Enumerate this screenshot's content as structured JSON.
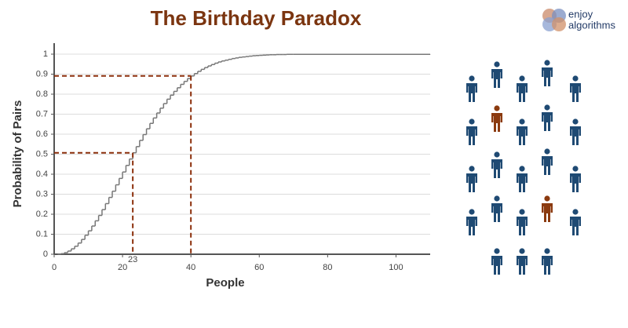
{
  "chart_data": {
    "type": "step",
    "title": "The Birthday Paradox",
    "x_label": "People",
    "y_label": "Probability of Pairs",
    "x": [
      1,
      2,
      3,
      4,
      5,
      6,
      7,
      8,
      9,
      10,
      11,
      12,
      13,
      14,
      15,
      16,
      17,
      18,
      19,
      20,
      21,
      22,
      23,
      24,
      25,
      26,
      27,
      28,
      29,
      30,
      31,
      32,
      33,
      34,
      35,
      36,
      37,
      38,
      39,
      40,
      41,
      42,
      43,
      44,
      45,
      46,
      47,
      48,
      49,
      50,
      51,
      52,
      53,
      54,
      55,
      56,
      57,
      58,
      59,
      60,
      61,
      62,
      63,
      64,
      65,
      66,
      67,
      68,
      69,
      70,
      110
    ],
    "values": [
      0,
      0.003,
      0.008,
      0.016,
      0.027,
      0.04,
      0.056,
      0.074,
      0.095,
      0.117,
      0.141,
      0.167,
      0.194,
      0.223,
      0.253,
      0.284,
      0.315,
      0.347,
      0.379,
      0.411,
      0.444,
      0.476,
      0.507,
      0.538,
      0.569,
      0.598,
      0.627,
      0.654,
      0.681,
      0.706,
      0.73,
      0.753,
      0.775,
      0.795,
      0.814,
      0.832,
      0.849,
      0.864,
      0.878,
      0.891,
      0.903,
      0.914,
      0.924,
      0.933,
      0.941,
      0.948,
      0.955,
      0.961,
      0.966,
      0.97,
      0.974,
      0.978,
      0.981,
      0.984,
      0.986,
      0.988,
      0.99,
      0.992,
      0.993,
      0.994,
      0.995,
      0.996,
      0.997,
      0.997,
      0.998,
      0.998,
      0.998,
      0.999,
      0.999,
      0.999,
      1
    ],
    "color": "#777777",
    "xlim": [
      0,
      110
    ],
    "ylim": [
      0,
      1
    ],
    "xticks": [
      0,
      20,
      40,
      60,
      80,
      100
    ],
    "yticks": [
      0,
      0.1,
      0.2,
      0.3,
      0.4,
      0.5,
      0.6,
      0.7,
      0.8,
      0.9,
      1
    ],
    "grid": true,
    "annotations": [
      {
        "x": 23,
        "y": 0.507,
        "label": "23",
        "color": "#8b2e0a"
      },
      {
        "x": 40,
        "y": 0.891,
        "color": "#8b2e0a"
      }
    ]
  },
  "logo": {
    "lines": [
      "enjoy",
      "algorithms"
    ]
  }
}
